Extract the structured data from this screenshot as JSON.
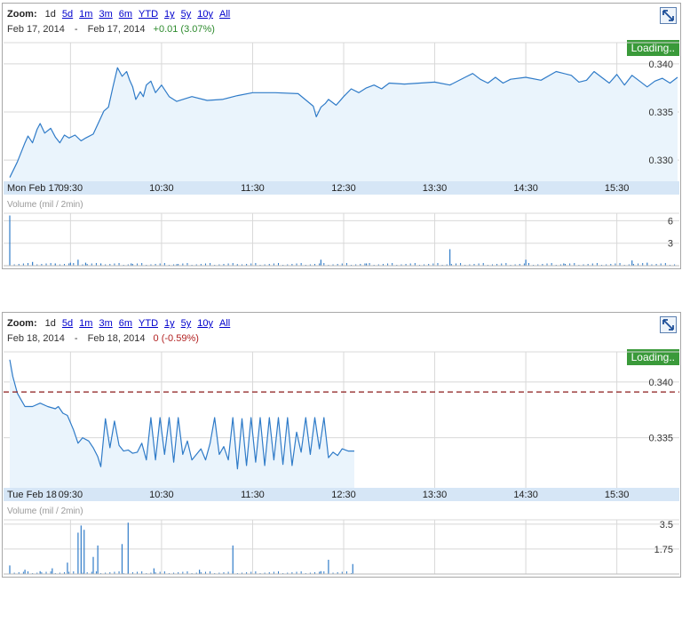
{
  "colors": {
    "line": "#2f7bc8",
    "area_fill": "#eaf4fc",
    "grid": "#d8d8d8",
    "axis_band": "#d6e6f6",
    "volume_bar": "#2f7bc8",
    "positive": "#2e8b2e",
    "negative": "#b22222",
    "prev_close_line": "#8b1a1a",
    "loading_bg": "#3a9a3a"
  },
  "panels": [
    {
      "zoom": {
        "label": "Zoom:",
        "options": [
          "1d",
          "5d",
          "1m",
          "3m",
          "6m",
          "YTD",
          "1y",
          "5y",
          "10y",
          "All"
        ],
        "active": "1d"
      },
      "range": {
        "start": "Feb 17, 2014",
        "separator": "-",
        "end": "Feb 17, 2014",
        "change": "+0.01 (3.07%)",
        "change_sign": "positive"
      },
      "loading_text": "Loading..",
      "expand_icon": "expand-arrows-icon",
      "volume_label": "Volume (mil / 2min)"
    },
    {
      "zoom": {
        "label": "Zoom:",
        "options": [
          "1d",
          "5d",
          "1m",
          "3m",
          "6m",
          "YTD",
          "1y",
          "5y",
          "10y",
          "All"
        ],
        "active": "1d"
      },
      "range": {
        "start": "Feb 18, 2014",
        "separator": "-",
        "end": "Feb 18, 2014",
        "change": "0 (-0.59%)",
        "change_sign": "negative"
      },
      "loading_text": "Loading..",
      "expand_icon": "expand-arrows-icon",
      "volume_label": "Volume (mil / 2min)"
    }
  ],
  "chart_data": [
    {
      "type": "area",
      "date_label": "Mon Feb 17",
      "x_ticks": [
        "09:30",
        "10:30",
        "11:30",
        "12:30",
        "13:30",
        "14:30",
        "15:30"
      ],
      "y_ticks": [
        0.34,
        0.335,
        0.33
      ],
      "y_tick_labels": [
        "0.340",
        "0.335",
        "0.330"
      ],
      "ylim": [
        0.3278,
        0.3422
      ],
      "xlim": [
        "08:50",
        "16:10"
      ],
      "grid": true,
      "series": [
        {
          "x": [
            "08:50",
            "08:55",
            "09:00",
            "09:02",
            "09:05",
            "09:08",
            "09:10",
            "09:13",
            "09:17",
            "09:20",
            "09:23",
            "09:26",
            "09:29",
            "09:33",
            "09:37",
            "09:40",
            "09:45",
            "09:50",
            "09:52",
            "09:55",
            "09:58",
            "10:01",
            "10:04",
            "10:07",
            "10:09",
            "10:11",
            "10:13",
            "10:16",
            "10:18",
            "10:20",
            "10:23",
            "10:26",
            "10:30",
            "10:35",
            "10:40",
            "10:50",
            "11:00",
            "11:10",
            "11:20",
            "11:30",
            "11:45",
            "12:00",
            "12:10",
            "12:12",
            "12:15",
            "12:18",
            "12:20",
            "12:25",
            "12:30",
            "12:35",
            "12:40",
            "12:45",
            "12:50",
            "12:55",
            "13:00",
            "13:10",
            "13:20",
            "13:30",
            "13:40",
            "13:50",
            "13:55",
            "14:00",
            "14:05",
            "14:10",
            "14:15",
            "14:20",
            "14:30",
            "14:40",
            "14:50",
            "15:00",
            "15:05",
            "15:10",
            "15:15",
            "15:20",
            "15:25",
            "15:30",
            "15:35",
            "15:40",
            "15:45",
            "15:50",
            "15:55",
            "16:00",
            "16:05",
            "16:10"
          ],
          "values": [
            0.3282,
            0.3298,
            0.3318,
            0.3325,
            0.3318,
            0.3332,
            0.3338,
            0.3328,
            0.3333,
            0.3324,
            0.3318,
            0.3326,
            0.3323,
            0.3326,
            0.332,
            0.3323,
            0.3327,
            0.3344,
            0.3351,
            0.3355,
            0.3376,
            0.3396,
            0.3387,
            0.3392,
            0.3383,
            0.3376,
            0.3363,
            0.3371,
            0.3366,
            0.3378,
            0.3382,
            0.337,
            0.3378,
            0.3366,
            0.3361,
            0.3366,
            0.3362,
            0.3363,
            0.3367,
            0.337,
            0.337,
            0.3369,
            0.3356,
            0.3345,
            0.3355,
            0.3359,
            0.3363,
            0.3357,
            0.3366,
            0.3374,
            0.337,
            0.3375,
            0.3378,
            0.3374,
            0.338,
            0.3379,
            0.338,
            0.3381,
            0.3378,
            0.3386,
            0.339,
            0.3384,
            0.338,
            0.3386,
            0.338,
            0.3384,
            0.3386,
            0.3383,
            0.3392,
            0.3388,
            0.3381,
            0.3383,
            0.3392,
            0.3386,
            0.338,
            0.3389,
            0.3378,
            0.3388,
            0.3382,
            0.3376,
            0.3382,
            0.3385,
            0.338,
            0.3386
          ]
        }
      ],
      "volume": {
        "label": "Volume (mil / 2min)",
        "y_ticks": [
          6,
          3
        ],
        "ylim": [
          0,
          7
        ],
        "bars": [
          {
            "x": "08:50",
            "v": 6.7
          },
          {
            "x": "09:05",
            "v": 0.5
          },
          {
            "x": "09:20",
            "v": 0.3
          },
          {
            "x": "09:30",
            "v": 0.4
          },
          {
            "x": "09:35",
            "v": 0.8
          },
          {
            "x": "09:40",
            "v": 0.4
          },
          {
            "x": "09:50",
            "v": 0.3
          },
          {
            "x": "10:10",
            "v": 0.3
          },
          {
            "x": "10:40",
            "v": 0.2
          },
          {
            "x": "11:20",
            "v": 0.2
          },
          {
            "x": "12:15",
            "v": 0.8
          },
          {
            "x": "12:45",
            "v": 0.3
          },
          {
            "x": "13:40",
            "v": 2.2
          },
          {
            "x": "14:30",
            "v": 0.8
          },
          {
            "x": "14:55",
            "v": 0.3
          },
          {
            "x": "15:40",
            "v": 0.7
          },
          {
            "x": "15:50",
            "v": 0.4
          }
        ]
      }
    },
    {
      "type": "area",
      "date_label": "Tue Feb 18",
      "x_ticks": [
        "09:30",
        "10:30",
        "11:30",
        "12:30",
        "13:30",
        "14:30",
        "15:30"
      ],
      "y_ticks": [
        0.34,
        0.335
      ],
      "y_tick_labels": [
        "0.340",
        "0.335"
      ],
      "ylim": [
        0.3305,
        0.3427
      ],
      "xlim": [
        "08:50",
        "16:10"
      ],
      "grid": true,
      "previous_close": 0.3391,
      "series": [
        {
          "x": [
            "08:50",
            "08:52",
            "08:55",
            "08:57",
            "09:00",
            "09:05",
            "09:10",
            "09:15",
            "09:20",
            "09:22",
            "09:25",
            "09:28",
            "09:32",
            "09:35",
            "09:38",
            "09:42",
            "09:45",
            "09:48",
            "09:50",
            "09:53",
            "09:56",
            "09:59",
            "10:02",
            "10:05",
            "10:08",
            "10:11",
            "10:14",
            "10:17",
            "10:20",
            "10:23",
            "10:26",
            "10:29",
            "10:32",
            "10:35",
            "10:38",
            "10:41",
            "10:44",
            "10:47",
            "10:50",
            "10:53",
            "10:56",
            "10:59",
            "11:02",
            "11:05",
            "11:08",
            "11:11",
            "11:14",
            "11:17",
            "11:20",
            "11:23",
            "11:26",
            "11:29",
            "11:32",
            "11:35",
            "11:38",
            "11:41",
            "11:44",
            "11:47",
            "11:50",
            "11:53",
            "11:56",
            "11:59",
            "12:02",
            "12:05",
            "12:08",
            "12:11",
            "12:14",
            "12:17",
            "12:20",
            "12:23",
            "12:26",
            "12:29",
            "12:33",
            "12:37"
          ],
          "values": [
            0.342,
            0.3405,
            0.339,
            0.3385,
            0.3378,
            0.3378,
            0.3381,
            0.3378,
            0.3376,
            0.3378,
            0.3372,
            0.337,
            0.3357,
            0.3345,
            0.335,
            0.3347,
            0.3341,
            0.3333,
            0.3324,
            0.3367,
            0.3341,
            0.3365,
            0.3343,
            0.3338,
            0.3339,
            0.3336,
            0.3337,
            0.3345,
            0.333,
            0.3368,
            0.333,
            0.3368,
            0.3335,
            0.3368,
            0.3328,
            0.3368,
            0.3335,
            0.3347,
            0.333,
            0.3335,
            0.334,
            0.333,
            0.3345,
            0.3368,
            0.3335,
            0.3342,
            0.333,
            0.3368,
            0.3322,
            0.3367,
            0.3325,
            0.3368,
            0.3328,
            0.3368,
            0.3325,
            0.3368,
            0.333,
            0.3368,
            0.3326,
            0.3368,
            0.3325,
            0.3355,
            0.3337,
            0.3368,
            0.3335,
            0.3368,
            0.334,
            0.3368,
            0.3332,
            0.3337,
            0.3334,
            0.334,
            0.3338,
            0.3338
          ]
        }
      ],
      "volume": {
        "label": "Volume (mil / 2min)",
        "y_ticks": [
          3.5,
          1.75
        ],
        "ylim": [
          0,
          3.8
        ],
        "bars": [
          {
            "x": "08:50",
            "v": 0.6
          },
          {
            "x": "09:00",
            "v": 0.3
          },
          {
            "x": "09:10",
            "v": 0.2
          },
          {
            "x": "09:18",
            "v": 0.4
          },
          {
            "x": "09:28",
            "v": 0.8
          },
          {
            "x": "09:35",
            "v": 2.9
          },
          {
            "x": "09:37",
            "v": 3.4
          },
          {
            "x": "09:39",
            "v": 3.1
          },
          {
            "x": "09:45",
            "v": 1.2
          },
          {
            "x": "09:48",
            "v": 2.0
          },
          {
            "x": "10:04",
            "v": 2.1
          },
          {
            "x": "10:08",
            "v": 3.6
          },
          {
            "x": "10:25",
            "v": 0.4
          },
          {
            "x": "10:55",
            "v": 0.3
          },
          {
            "x": "11:17",
            "v": 2.0
          },
          {
            "x": "12:15",
            "v": 0.2
          },
          {
            "x": "12:20",
            "v": 1.0
          },
          {
            "x": "12:36",
            "v": 0.7
          }
        ]
      }
    }
  ]
}
